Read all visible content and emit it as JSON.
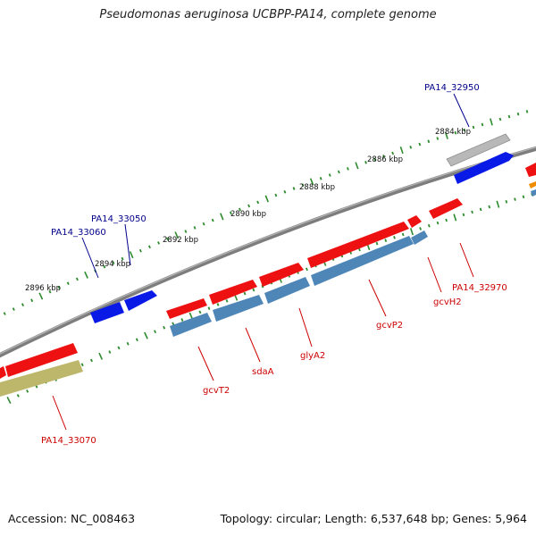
{
  "title": "Pseudomonas aeruginosa UCBPP-PA14, complete genome",
  "footer": {
    "accession": "Accession: NC_008463",
    "stats": "Topology: circular; Length: 6,537,648 bp; Genes: 5,964"
  },
  "colors": {
    "backbone": "#8a8a8a",
    "tick": "#2e8b2e",
    "forward_gene": "#ee1111",
    "reverse_gene_blue": "#0a1ae6",
    "rna_operon": "#4f86b8",
    "olive": "#bdb76b",
    "grey_gene": "#b4b4b4",
    "label_red": "#cc0000",
    "label_blue": "#00008b"
  },
  "scale_labels": [
    "2884 kbp",
    "2886 kbp",
    "2888 kbp",
    "2890 kbp",
    "2892 kbp",
    "2894 kbp",
    "2896 kbp"
  ],
  "gene_labels": [
    {
      "text": "PA14_32950",
      "color": "label_blue"
    },
    {
      "text": "PA14_33050",
      "color": "label_blue"
    },
    {
      "text": "PA14_33060",
      "color": "label_blue"
    },
    {
      "text": "PA14_32970",
      "color": "label_red"
    },
    {
      "text": "gcvH2",
      "color": "label_red"
    },
    {
      "text": "gcvP2",
      "color": "label_red"
    },
    {
      "text": "glyA2",
      "color": "label_red"
    },
    {
      "text": "sdaA",
      "color": "label_red"
    },
    {
      "text": "gcvT2",
      "color": "label_red"
    },
    {
      "text": "PA14_33070",
      "color": "label_red"
    }
  ]
}
